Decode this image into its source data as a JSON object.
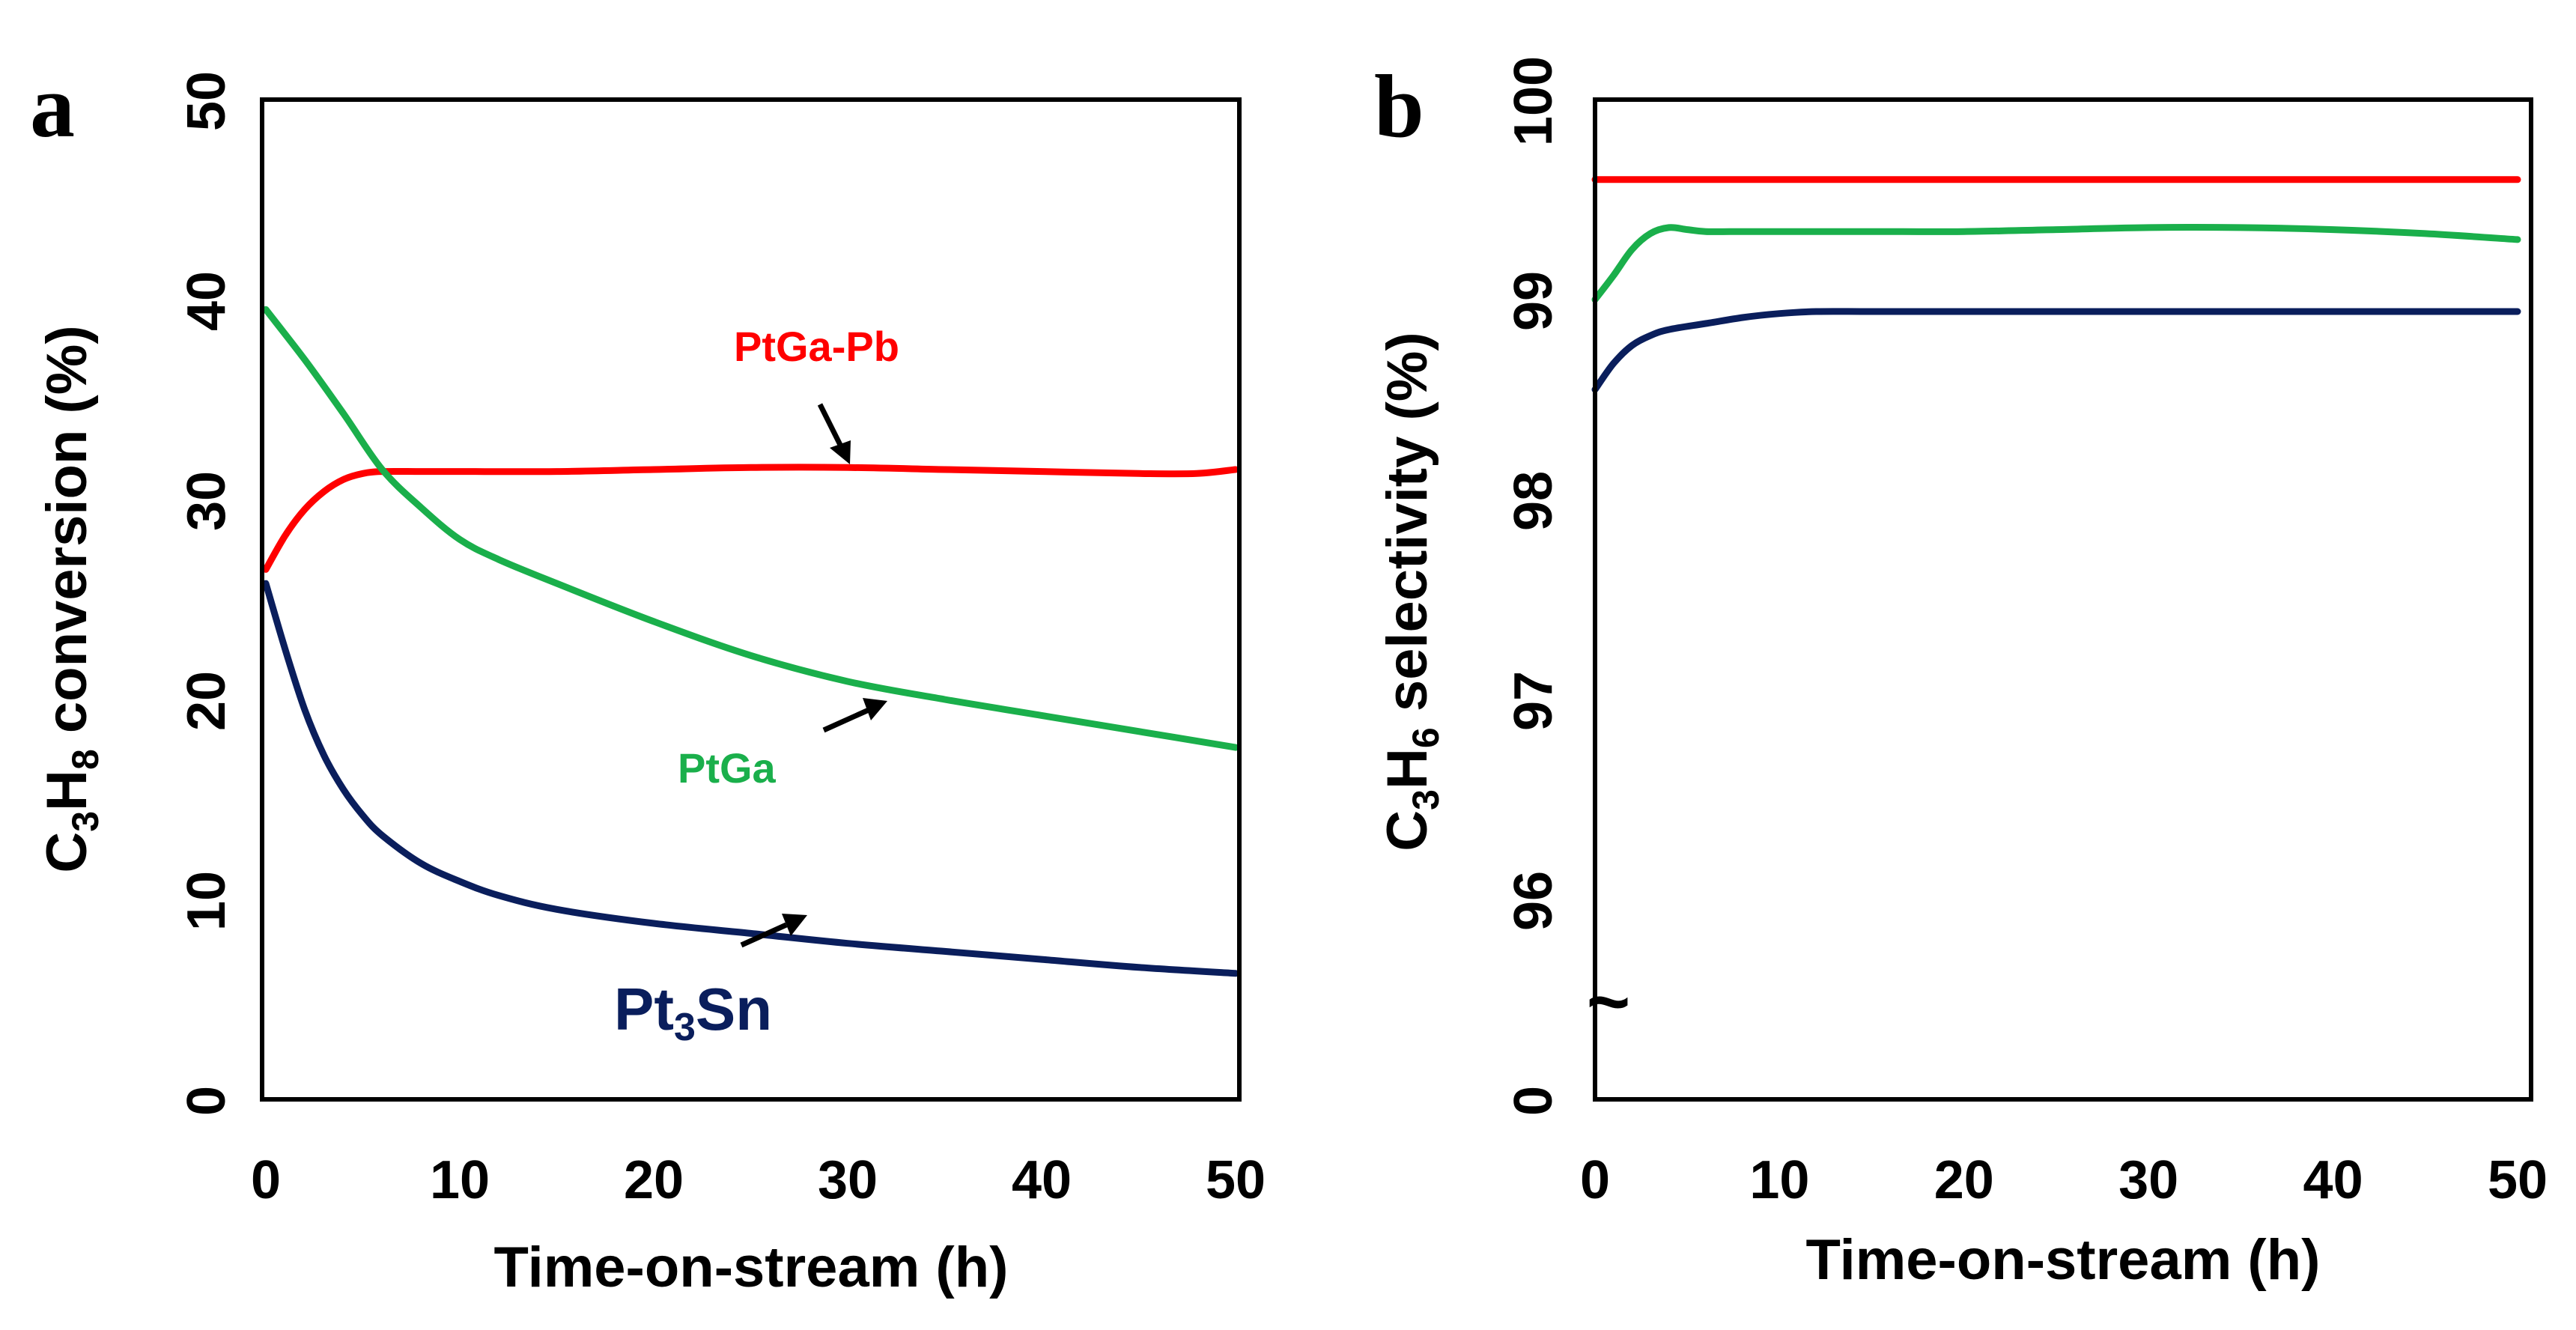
{
  "chart_data": [
    {
      "panel": "a",
      "type": "line",
      "title": "",
      "xlabel": "Time-on-stream (h)",
      "ylabel": {
        "base": "C",
        "sub1": "3",
        "mid": "H",
        "sub2": "8",
        "rest": " conversion (%)"
      },
      "xlim": [
        0,
        50
      ],
      "ylim": [
        0,
        50
      ],
      "xticks": [
        "0",
        "10",
        "20",
        "30",
        "40",
        "50"
      ],
      "yticks": [
        "0",
        "10",
        "20",
        "30",
        "40",
        "50"
      ],
      "grid": false,
      "series": [
        {
          "name": "PtGa-Pb",
          "color": "#ff0000",
          "x": [
            0,
            1,
            2,
            3,
            4,
            5,
            6,
            8,
            10,
            15,
            20,
            25,
            30,
            35,
            40,
            45,
            48,
            50
          ],
          "y": [
            26.5,
            28.2,
            29.5,
            30.4,
            31.0,
            31.3,
            31.4,
            31.4,
            31.4,
            31.4,
            31.5,
            31.6,
            31.6,
            31.5,
            31.4,
            31.3,
            31.3,
            31.5
          ]
        },
        {
          "name": "PtGa",
          "color": "#1aaf4b",
          "x": [
            0,
            2,
            4,
            6,
            8,
            10,
            12,
            15,
            20,
            25,
            30,
            35,
            40,
            45,
            50
          ],
          "y": [
            39.5,
            37.0,
            34.3,
            31.5,
            29.6,
            28.0,
            27.0,
            25.8,
            23.9,
            22.2,
            20.9,
            20.0,
            19.2,
            18.4,
            17.6
          ]
        },
        {
          "name": "Pt3Sn",
          "color": "#0a1e5c",
          "x": [
            0,
            1,
            2,
            3,
            4,
            5,
            6,
            8,
            10,
            12,
            15,
            20,
            25,
            30,
            35,
            40,
            45,
            50
          ],
          "y": [
            25.8,
            22.5,
            19.5,
            17.2,
            15.5,
            14.2,
            13.2,
            11.8,
            10.9,
            10.2,
            9.5,
            8.8,
            8.3,
            7.8,
            7.4,
            7.0,
            6.6,
            6.3
          ]
        }
      ],
      "annotations": [
        {
          "series": "PtGa-Pb",
          "text": "PtGa-Pb",
          "color": "#ff0000"
        },
        {
          "series": "PtGa",
          "text": "PtGa",
          "color": "#1aaf4b"
        },
        {
          "series": "Pt3Sn",
          "text_base": "Pt",
          "text_sub": "3",
          "text_rest": "Sn",
          "color": "#0a1e5c"
        }
      ]
    },
    {
      "panel": "b",
      "type": "line",
      "title": "",
      "xlabel": "Time-on-stream (h)",
      "ylabel": {
        "base": "C",
        "sub1": "3",
        "mid": "H",
        "sub2": "6",
        "rest": " selectivity (%)"
      },
      "xlim": [
        0,
        50
      ],
      "ylim": [
        95,
        100
      ],
      "axis_break": true,
      "axis_break_symbol": "~",
      "xticks": [
        "0",
        "10",
        "20",
        "30",
        "40",
        "50"
      ],
      "yticks": [
        "0",
        "96",
        "97",
        "98",
        "99",
        "100"
      ],
      "ytick_values": [
        95,
        96,
        97,
        98,
        99,
        100
      ],
      "grid": false,
      "series": [
        {
          "name": "PtGa-Pb",
          "color": "#ff0000",
          "x": [
            0,
            50
          ],
          "y": [
            99.6,
            99.6
          ]
        },
        {
          "name": "PtGa",
          "color": "#1aaf4b",
          "x": [
            0,
            1,
            2,
            3,
            4,
            5,
            6,
            8,
            10,
            15,
            20,
            25,
            30,
            35,
            40,
            45,
            50
          ],
          "y": [
            99.0,
            99.12,
            99.25,
            99.33,
            99.36,
            99.35,
            99.34,
            99.34,
            99.34,
            99.34,
            99.34,
            99.35,
            99.36,
            99.36,
            99.35,
            99.33,
            99.3
          ]
        },
        {
          "name": "Pt3Sn",
          "color": "#0a1e5c",
          "x": [
            0,
            1,
            2,
            3,
            4,
            6,
            8,
            10,
            12,
            15,
            20,
            30,
            40,
            50
          ],
          "y": [
            98.55,
            98.68,
            98.77,
            98.82,
            98.85,
            98.88,
            98.91,
            98.93,
            98.94,
            98.94,
            98.94,
            98.94,
            98.94,
            98.94
          ]
        }
      ]
    }
  ]
}
